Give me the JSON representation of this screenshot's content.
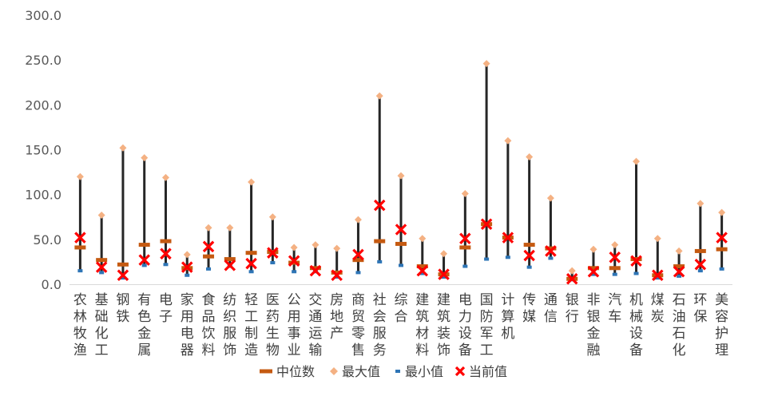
{
  "chart_data": {
    "type": "scatter",
    "ylim": [
      0,
      300
    ],
    "yticks": [
      "0.0",
      "50.0",
      "100.0",
      "150.0",
      "200.0",
      "250.0",
      "300.0"
    ],
    "grid": false,
    "legend_position": "bottom",
    "categories": [
      "农林牧渔",
      "基础化工",
      "钢铁",
      "有色金属",
      "电子",
      "家用电器",
      "食品饮料",
      "纺织服饰",
      "轻工制造",
      "医药生物",
      "公用事业",
      "交通运输",
      "房地产",
      "商贸零售",
      "社会服务",
      "综合",
      "建筑材料",
      "建筑装饰",
      "电力设备",
      "国防军工",
      "计算机",
      "传媒",
      "通信",
      "银行",
      "非银金融",
      "汽车",
      "机械设备",
      "煤炭",
      "石油石化",
      "环保",
      "美容护理"
    ],
    "series": [
      {
        "name": "中位数",
        "values": [
          41,
          27,
          22,
          44,
          48,
          18,
          31,
          28,
          35,
          36,
          24,
          18,
          13,
          27,
          48,
          45,
          20,
          11,
          41,
          67,
          52,
          44,
          40,
          6,
          18,
          18,
          28,
          10,
          20,
          37,
          39
        ]
      },
      {
        "name": "最大值",
        "values": [
          120,
          77,
          152,
          141,
          119,
          33,
          63,
          63,
          114,
          75,
          41,
          44,
          40,
          72,
          210,
          121,
          51,
          34,
          101,
          246,
          160,
          142,
          96,
          15,
          39,
          44,
          137,
          51,
          37,
          90,
          80
        ]
      },
      {
        "name": "最小值",
        "values": [
          15,
          13,
          7,
          21,
          22,
          10,
          17,
          20,
          14,
          24,
          14,
          14,
          8,
          13,
          25,
          21,
          12,
          8,
          20,
          28,
          30,
          19,
          29,
          5,
          11,
          11,
          12,
          7,
          9,
          15,
          17
        ]
      },
      {
        "name": "当前值",
        "values": [
          52,
          19,
          10,
          27,
          34,
          19,
          42,
          21,
          23,
          35,
          26,
          15,
          10,
          33,
          88,
          61,
          15,
          11,
          51,
          67,
          52,
          32,
          37,
          6,
          14,
          30,
          26,
          10,
          14,
          22,
          52
        ]
      }
    ]
  },
  "colors": {
    "median": "#C55A11",
    "max": "#F4B183",
    "min": "#2E75B6",
    "current": "#FF0000",
    "range_line": "#262626",
    "axis": "#D9D9D9"
  }
}
